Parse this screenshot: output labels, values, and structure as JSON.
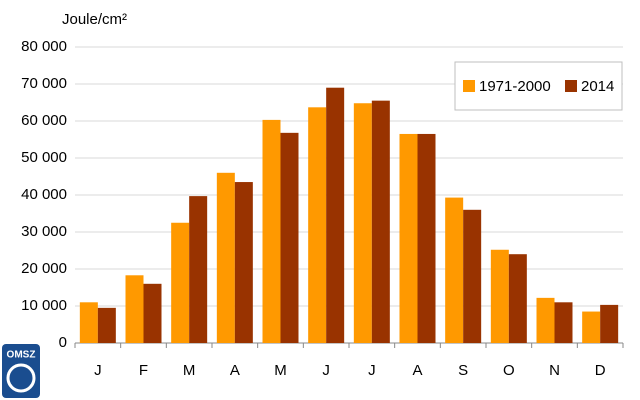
{
  "chart_data": {
    "type": "bar",
    "ylabel": "Joule/cm²",
    "categories": [
      "J",
      "F",
      "M",
      "A",
      "M",
      "J",
      "J",
      "A",
      "S",
      "O",
      "N",
      "D"
    ],
    "series": [
      {
        "name": "1971-2000",
        "color": "#ff9900",
        "values": [
          11000,
          18300,
          32500,
          46000,
          60300,
          63700,
          64800,
          56500,
          39300,
          25200,
          12200,
          8500
        ]
      },
      {
        "name": "2014",
        "color": "#993300",
        "values": [
          9500,
          16000,
          39700,
          43500,
          56800,
          69000,
          65500,
          56500,
          36000,
          24000,
          11000,
          10300
        ]
      }
    ],
    "ylim": [
      0,
      80000
    ],
    "yticks": [
      0,
      {
        "value": 10000,
        "label": "10 000"
      },
      {
        "value": 20000,
        "label": "20 000"
      },
      {
        "value": 30000,
        "label": "30 000"
      },
      {
        "value": 40000,
        "label": "40 000"
      },
      {
        "value": 50000,
        "label": "50 000"
      },
      {
        "value": 60000,
        "label": "60 000"
      },
      {
        "value": 70000,
        "label": "70 000"
      },
      {
        "value": 80000,
        "label": "80 000"
      }
    ],
    "grid": true,
    "legend": "upper right"
  },
  "logo": {
    "text": "OMSZ"
  }
}
